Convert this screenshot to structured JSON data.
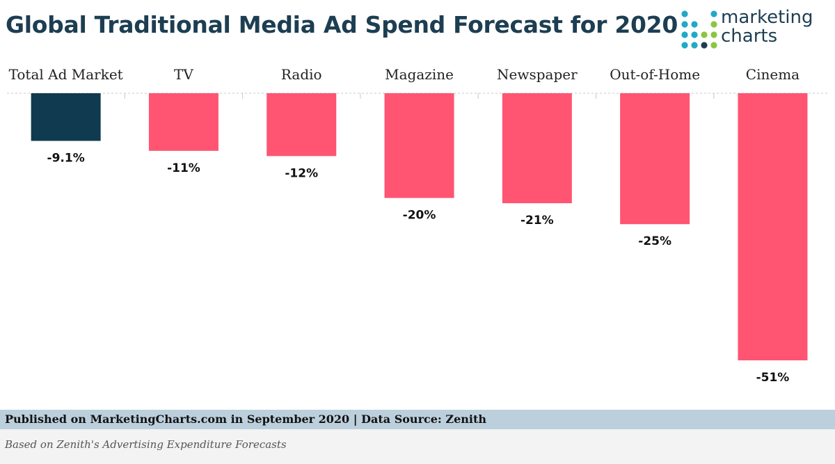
{
  "header": {
    "title": "Global Traditional Media Ad Spend Forecast for 2020",
    "logo": {
      "line1": "marketing",
      "line2": "charts",
      "dot_colors": [
        "#22a9c6",
        "#8cc63f",
        "#1d3e52"
      ]
    }
  },
  "chart_data": {
    "type": "bar",
    "title": "Global Traditional Media Ad Spend Forecast for 2020",
    "categories": [
      "Total Ad Market",
      "TV",
      "Radio",
      "Magazine",
      "Newspaper",
      "Out-of-Home",
      "Cinema"
    ],
    "values": [
      -9.1,
      -11,
      -12,
      -20,
      -21,
      -25,
      -51
    ],
    "value_labels": [
      "-9.1%",
      "-11%",
      "-12%",
      "-20%",
      "-21%",
      "-25%",
      "-51%"
    ],
    "ylim": [
      -51,
      0
    ],
    "grid": false,
    "legend": "none",
    "colors": {
      "highlight": "#0f3a4f",
      "bar": "#ff5472",
      "baseline": "#c8c8c8"
    }
  },
  "footer": {
    "published": "Published on MarketingCharts.com in September 2020 | Data Source: Zenith",
    "note": "Based on Zenith's Advertising Expenditure Forecasts"
  }
}
